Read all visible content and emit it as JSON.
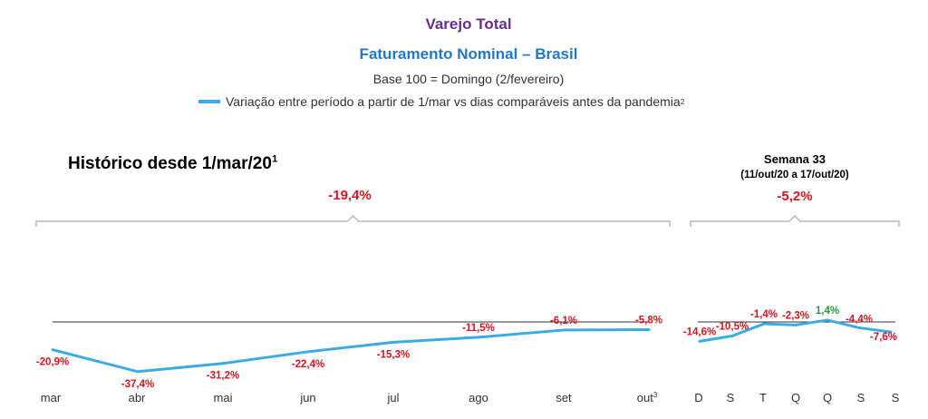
{
  "header": {
    "title": "Varejo Total",
    "subtitle": "Faturamento Nominal – Brasil",
    "base": "Base 100 = Domingo (2/fevereiro)",
    "legend": "Variação entre período a partir de 1/mar vs dias comparáveis antes da pandemia",
    "legend_sup": "2"
  },
  "colors": {
    "line": "#3aace3",
    "negative": "#d7141d",
    "positive": "#1e9e3c",
    "baseline": "#333333",
    "title": "#6a2c91",
    "subtitle": "#1f78c8"
  },
  "history": {
    "title": "Histórico desde 1/mar/20",
    "title_sup": "1",
    "total": "-19,4%"
  },
  "week": {
    "title": "Semana 33",
    "range": "(11/out/20 a 17/out/20)",
    "total": "-5,2%"
  },
  "chart_data": [
    {
      "type": "line",
      "series": [
        {
          "x": [
            "mar",
            "abr",
            "mai",
            "jun",
            "jul",
            "ago",
            "set",
            "out"
          ],
          "values": [
            -20.9,
            -37.4,
            -31.2,
            -22.4,
            -15.3,
            -11.5,
            -6.1,
            -5.8
          ],
          "labels": [
            "-20,9%",
            "-37,4%",
            "-31,2%",
            "-22,4%",
            "-15,3%",
            "-11,5%",
            "-6,1%",
            "-5,8%"
          ]
        }
      ],
      "tick_labels": [
        "mar",
        "abr",
        "mai",
        "jun",
        "jul",
        "ago",
        "set",
        "out"
      ],
      "tick_sup": {
        "out": "3"
      },
      "baseline": 0
    },
    {
      "type": "line",
      "series": [
        {
          "x": [
            "D",
            "S",
            "T",
            "Q",
            "Q",
            "S",
            "S"
          ],
          "values": [
            -14.6,
            -10.5,
            -1.4,
            -2.3,
            1.4,
            -4.4,
            -7.6
          ],
          "labels": [
            "-14,6%",
            "-10,5%",
            "-1,4%",
            "-2,3%",
            "1,4%",
            "-4,4%",
            "-7,6%"
          ]
        }
      ],
      "tick_labels": [
        "D",
        "S",
        "T",
        "Q",
        "Q",
        "S",
        "S"
      ],
      "baseline": 0
    }
  ]
}
